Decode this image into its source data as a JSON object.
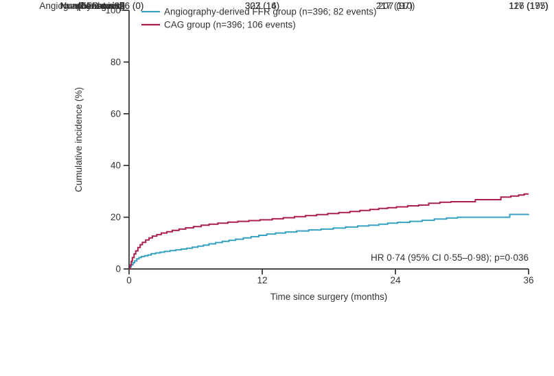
{
  "chart_data": {
    "type": "line",
    "subtype": "step-cumulative-incidence",
    "title": "",
    "xlabel": "Time since surgery (months)",
    "ylabel": "Cumulative incidence (%)",
    "xlim": [
      0,
      36
    ],
    "ylim": [
      0,
      100
    ],
    "xticks": [
      0,
      12,
      24,
      36
    ],
    "yticks": [
      0,
      20,
      40,
      60,
      80,
      100
    ],
    "grid": false,
    "legend_position": "top-inside-left",
    "annotation": "HR 0·74 (95% CI 0·55–0·98); p=0·036",
    "axis_color": "#2e2e2e",
    "text_color": "#323232",
    "series": [
      {
        "name": "Angiography-derived FFR group (n=396; 82 events)",
        "color": "#35A1C1",
        "n": 396,
        "events": 82,
        "points": [
          [
            0,
            0
          ],
          [
            0.1,
            0.8
          ],
          [
            0.2,
            1.6
          ],
          [
            0.35,
            2.4
          ],
          [
            0.5,
            3.1
          ],
          [
            0.7,
            3.9
          ],
          [
            0.9,
            4.4
          ],
          [
            1.1,
            4.8
          ],
          [
            1.4,
            5.1
          ],
          [
            1.7,
            5.4
          ],
          [
            2.0,
            5.9
          ],
          [
            2.4,
            6.2
          ],
          [
            2.8,
            6.5
          ],
          [
            3.2,
            6.8
          ],
          [
            3.7,
            7.1
          ],
          [
            4.2,
            7.4
          ],
          [
            4.7,
            7.7
          ],
          [
            5.2,
            8.0
          ],
          [
            5.7,
            8.4
          ],
          [
            6.2,
            8.8
          ],
          [
            6.7,
            9.2
          ],
          [
            7.2,
            9.7
          ],
          [
            7.8,
            10.2
          ],
          [
            8.4,
            10.7
          ],
          [
            9.0,
            11.1
          ],
          [
            9.6,
            11.5
          ],
          [
            10.3,
            12.0
          ],
          [
            11.0,
            12.5
          ],
          [
            11.7,
            13.0
          ],
          [
            12.4,
            13.5
          ],
          [
            13.2,
            13.9
          ],
          [
            14.1,
            14.3
          ],
          [
            15.1,
            14.7
          ],
          [
            16.2,
            15.1
          ],
          [
            17.3,
            15.4
          ],
          [
            18.4,
            15.8
          ],
          [
            19.5,
            16.2
          ],
          [
            20.6,
            16.6
          ],
          [
            21.6,
            16.9
          ],
          [
            22.5,
            17.3
          ],
          [
            23.3,
            17.7
          ],
          [
            24.2,
            18.0
          ],
          [
            25.3,
            18.4
          ],
          [
            26.4,
            18.8
          ],
          [
            27.5,
            19.3
          ],
          [
            28.6,
            19.7
          ],
          [
            29.6,
            20.0
          ],
          [
            34.3,
            21.1
          ],
          [
            36,
            21.2
          ]
        ]
      },
      {
        "name": "CAG group (n=396; 106 events)",
        "color": "#A91E4D",
        "n": 396,
        "events": 106,
        "points": [
          [
            0,
            0
          ],
          [
            0.1,
            1.5
          ],
          [
            0.2,
            3.0
          ],
          [
            0.3,
            4.4
          ],
          [
            0.45,
            5.8
          ],
          [
            0.6,
            7.0
          ],
          [
            0.8,
            8.3
          ],
          [
            1.0,
            9.4
          ],
          [
            1.2,
            10.3
          ],
          [
            1.5,
            11.2
          ],
          [
            1.8,
            12.0
          ],
          [
            2.1,
            12.7
          ],
          [
            2.5,
            13.3
          ],
          [
            2.9,
            13.9
          ],
          [
            3.4,
            14.4
          ],
          [
            3.9,
            14.9
          ],
          [
            4.5,
            15.4
          ],
          [
            5.1,
            15.9
          ],
          [
            5.8,
            16.4
          ],
          [
            6.5,
            16.9
          ],
          [
            7.2,
            17.3
          ],
          [
            8.0,
            17.7
          ],
          [
            8.9,
            18.1
          ],
          [
            9.8,
            18.4
          ],
          [
            10.8,
            18.7
          ],
          [
            11.8,
            19.0
          ],
          [
            12.9,
            19.4
          ],
          [
            13.9,
            19.8
          ],
          [
            14.9,
            20.2
          ],
          [
            15.9,
            20.6
          ],
          [
            16.9,
            21.0
          ],
          [
            17.9,
            21.4
          ],
          [
            18.9,
            21.8
          ],
          [
            19.9,
            22.2
          ],
          [
            20.8,
            22.6
          ],
          [
            21.7,
            23.0
          ],
          [
            22.5,
            23.4
          ],
          [
            23.3,
            23.7
          ],
          [
            24.1,
            24.0
          ],
          [
            25.1,
            24.4
          ],
          [
            26.1,
            24.7
          ],
          [
            27.0,
            25.4
          ],
          [
            28.0,
            25.8
          ],
          [
            29.0,
            26.0
          ],
          [
            31.2,
            26.8
          ],
          [
            33.5,
            27.8
          ],
          [
            34.4,
            28.2
          ],
          [
            35.1,
            28.6
          ],
          [
            35.6,
            29.0
          ],
          [
            36,
            29.0
          ]
        ]
      }
    ]
  },
  "risk_table": {
    "title_line1": "Number at risk",
    "title_line2": "(censored)",
    "rows": [
      {
        "label_line1": "Angiography-derived",
        "label_line2": "FFR group",
        "values": [
          "396 (0)",
          "323 (16)",
          "217 (110)",
          "126 (195)"
        ]
      },
      {
        "label_line1": "CAG group",
        "label_line2": "",
        "values": [
          "396 (0)",
          "307 (14)",
          "207 (97)",
          "117 (177)"
        ]
      }
    ]
  }
}
